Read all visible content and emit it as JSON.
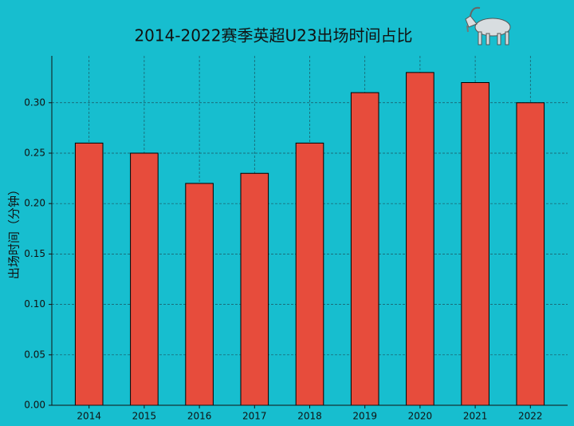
{
  "chart_data": {
    "type": "bar",
    "title": "2014-2022赛季英超U23出场时间占比",
    "y_label": "出场时间（分钟）",
    "categories": [
      "2014",
      "2015",
      "2016",
      "2017",
      "2018",
      "2019",
      "2020",
      "2021",
      "2022"
    ],
    "values": [
      0.26,
      0.25,
      0.22,
      0.23,
      0.26,
      0.31,
      0.33,
      0.32,
      0.3
    ],
    "color": "#e74c3c",
    "ylim": [
      0,
      0.3465
    ],
    "yticks": [
      {
        "value": 0,
        "label": "0.00"
      },
      {
        "value": 0.05,
        "label": "0.05"
      },
      {
        "value": 0.1,
        "label": "0.10"
      },
      {
        "value": 0.15,
        "label": "0.15"
      },
      {
        "value": 0.2,
        "label": "0.20"
      },
      {
        "value": 0.25,
        "label": "0.25"
      },
      {
        "value": 0.3,
        "label": "0.30"
      }
    ],
    "grid": true
  }
}
